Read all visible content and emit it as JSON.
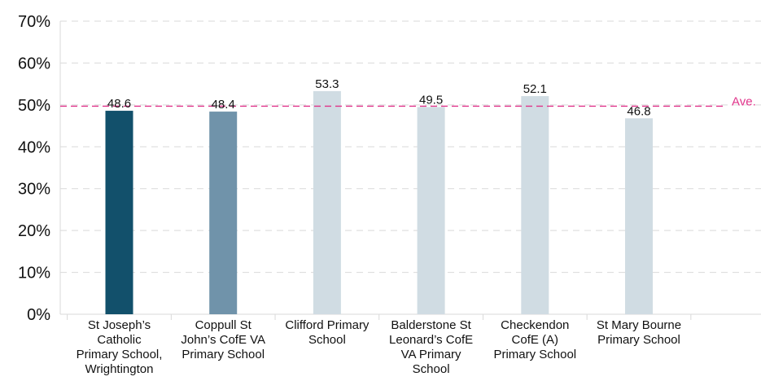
{
  "chart_data": {
    "type": "bar",
    "categories": [
      [
        "St Joseph’s",
        "Catholic",
        "Primary School,",
        "Wrightington"
      ],
      [
        "Coppull St",
        "John’s CofE VA",
        "Primary School"
      ],
      [
        "Clifford Primary",
        "School"
      ],
      [
        "Balderstone St",
        "Leonard’s CofE",
        "VA Primary",
        "School"
      ],
      [
        "Checkendon",
        "CofE (A)",
        "Primary School"
      ],
      [
        "St Mary Bourne",
        "Primary School"
      ]
    ],
    "values": [
      48.6,
      48.4,
      53.3,
      49.5,
      52.1,
      46.8
    ],
    "data_labels": [
      "48.6",
      "48.4",
      "53.3",
      "49.5",
      "52.1",
      "46.8"
    ],
    "bar_colors": [
      "#12506b",
      "#7093aa",
      "#d0dce3",
      "#d0dce3",
      "#d0dce3",
      "#d0dce3"
    ],
    "ylim": [
      0,
      70
    ],
    "yticks": [
      0,
      10,
      20,
      30,
      40,
      50,
      60,
      70
    ],
    "ytick_labels": [
      "0%",
      "10%",
      "20%",
      "30%",
      "40%",
      "50%",
      "60%",
      "70%"
    ],
    "grid": true,
    "reference_line": {
      "label": "Ave.",
      "value": 49.7,
      "color": "#e0338a",
      "style": "dashed"
    },
    "title": "",
    "xlabel": "",
    "ylabel": ""
  }
}
